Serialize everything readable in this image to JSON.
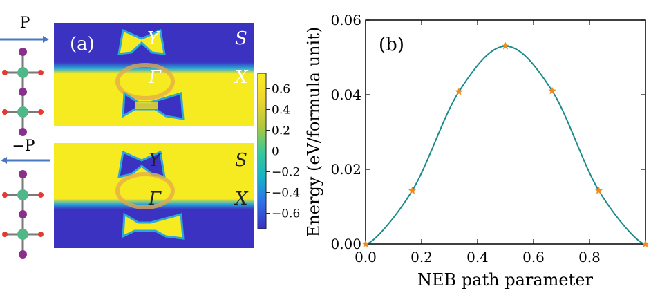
{
  "panel_a": {
    "label": "(a)",
    "top": {
      "arrow_label": "P",
      "k_labels": {
        "y": "Y",
        "s": "S",
        "gamma": "Γ",
        "x": "X"
      }
    },
    "bottom": {
      "arrow_label": "−P",
      "k_labels": {
        "y": "Y",
        "s": "S",
        "gamma": "Γ",
        "x": "X"
      }
    },
    "colorbar": {
      "ticks": [
        "0.6",
        "0.4",
        "0.2",
        "0",
        "−0.2",
        "−0.4",
        "−0.6"
      ],
      "tick_values": [
        0.6,
        0.4,
        0.2,
        0,
        -0.2,
        -0.4,
        -0.6
      ],
      "range": [
        -0.75,
        0.75
      ],
      "colors": [
        "#3a2fc0",
        "#2f6fe8",
        "#17b3c6",
        "#3cc896",
        "#b5c83a",
        "#f1d52e",
        "#f8ef22"
      ]
    },
    "map_colors": {
      "high": "#f6ea20",
      "low": "#3b32c2",
      "mid": "#2aa8d8"
    },
    "atom_colors": {
      "i": "#8b2f8f",
      "core": "#4fb889",
      "o": "#e33b32",
      "bond": "#7a7a7a"
    }
  },
  "chart_data": {
    "type": "line",
    "panel_label": "(b)",
    "title": "",
    "xlabel": "NEB path parameter",
    "ylabel": "Energy (eV/formula unit)",
    "xlim": [
      0,
      1
    ],
    "ylim": [
      0,
      0.06
    ],
    "xticks": [
      0,
      0.2,
      0.4,
      0.6,
      0.8
    ],
    "xtick_labels": [
      "0.0",
      "0.2",
      "0.4",
      "0.6",
      "0.8"
    ],
    "yticks": [
      0,
      0.02,
      0.04,
      0.06
    ],
    "ytick_labels": [
      "0.00",
      "0.02",
      "0.04",
      "0.06"
    ],
    "grid": false,
    "series": [
      {
        "points": [
          [
            0,
            0
          ],
          [
            0.1667,
            0.0143
          ],
          [
            0.3333,
            0.0408
          ],
          [
            0.5,
            0.053
          ],
          [
            0.6667,
            0.041
          ],
          [
            0.8333,
            0.0143
          ],
          [
            1.0,
            0
          ]
        ],
        "line_color": "#1a8a8a",
        "marker": "star",
        "marker_color": "#f08a1e"
      }
    ]
  }
}
